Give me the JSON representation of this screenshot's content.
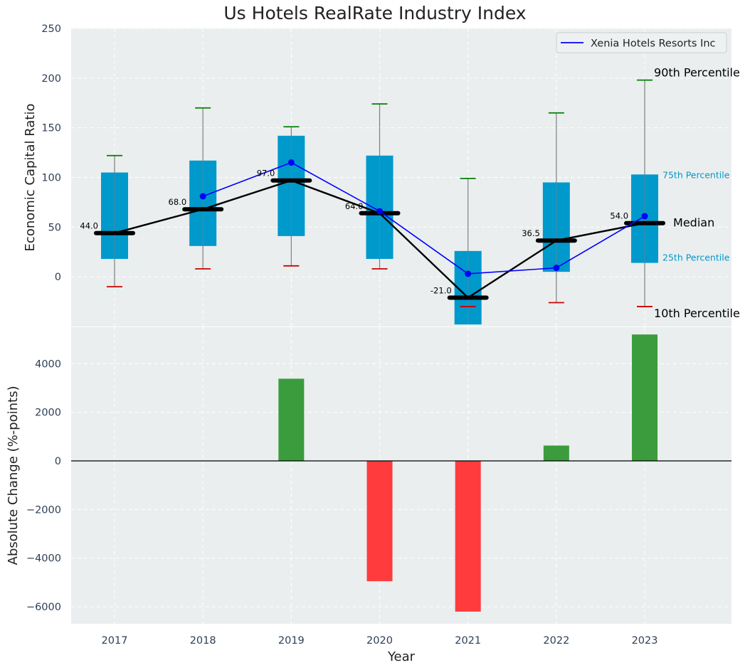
{
  "title": "Us Hotels RealRate Industry Index",
  "colors": {
    "background": "#ffffff",
    "plot_bg": "#eaeeef",
    "grid": "#ffffff",
    "box": "#0099cc",
    "whisker": "#808080",
    "p90_cap": "#008000",
    "p10_cap": "#cc0000",
    "median": "#000000",
    "company": "#0000ff",
    "positive_bar": "#3a9c3c",
    "negative_bar": "#ff3b3e",
    "axis_text": "#2e4057"
  },
  "chart_data": [
    {
      "type": "box",
      "title": "Us Hotels RealRate Industry Index",
      "ylabel": "Economic Capital Ratio",
      "ylim": [
        -50,
        250
      ],
      "yticks": [
        0,
        50,
        100,
        150,
        200,
        250
      ],
      "categories": [
        "2017",
        "2018",
        "2019",
        "2020",
        "2021",
        "2022",
        "2023"
      ],
      "p10": [
        -10,
        8,
        11,
        8,
        -30,
        -26,
        -30
      ],
      "p25": [
        18,
        31,
        41,
        18,
        -48,
        5,
        14
      ],
      "median": [
        44.0,
        68.0,
        97.0,
        64.0,
        -21.0,
        36.5,
        54.0
      ],
      "median_labels": [
        "44.0",
        "68.0",
        "97.0",
        "64.0",
        "-21.0",
        "36.5",
        "54.0"
      ],
      "p75": [
        105,
        117,
        142,
        122,
        26,
        95,
        103
      ],
      "p90": [
        122,
        170,
        151,
        174,
        99,
        165,
        198
      ],
      "series": [
        {
          "name": "Xenia Hotels Resorts Inc",
          "values": [
            null,
            81,
            115,
            66,
            3,
            9,
            61
          ]
        }
      ],
      "legend": {
        "entries": [
          "Xenia Hotels Resorts Inc"
        ],
        "position": "top-right"
      },
      "annotations": {
        "p90": "90th Percentile",
        "p75": "75th Percentile",
        "median": "Median",
        "p25": "25th Percentile",
        "p10": "10th Percentile"
      },
      "grid": true
    },
    {
      "type": "bar",
      "ylabel": "Absolute Change (%-points)",
      "xlabel": "Year",
      "ylim": [
        -6700,
        5500
      ],
      "yticks": [
        -6000,
        -4000,
        -2000,
        0,
        2000,
        4000
      ],
      "ytick_labels": [
        "−6000",
        "−4000",
        "−2000",
        "0",
        "2000",
        "4000"
      ],
      "categories": [
        "2017",
        "2018",
        "2019",
        "2020",
        "2021",
        "2022",
        "2023"
      ],
      "values": [
        0,
        0,
        3380,
        -4950,
        -6200,
        630,
        5200
      ],
      "grid": true
    }
  ]
}
